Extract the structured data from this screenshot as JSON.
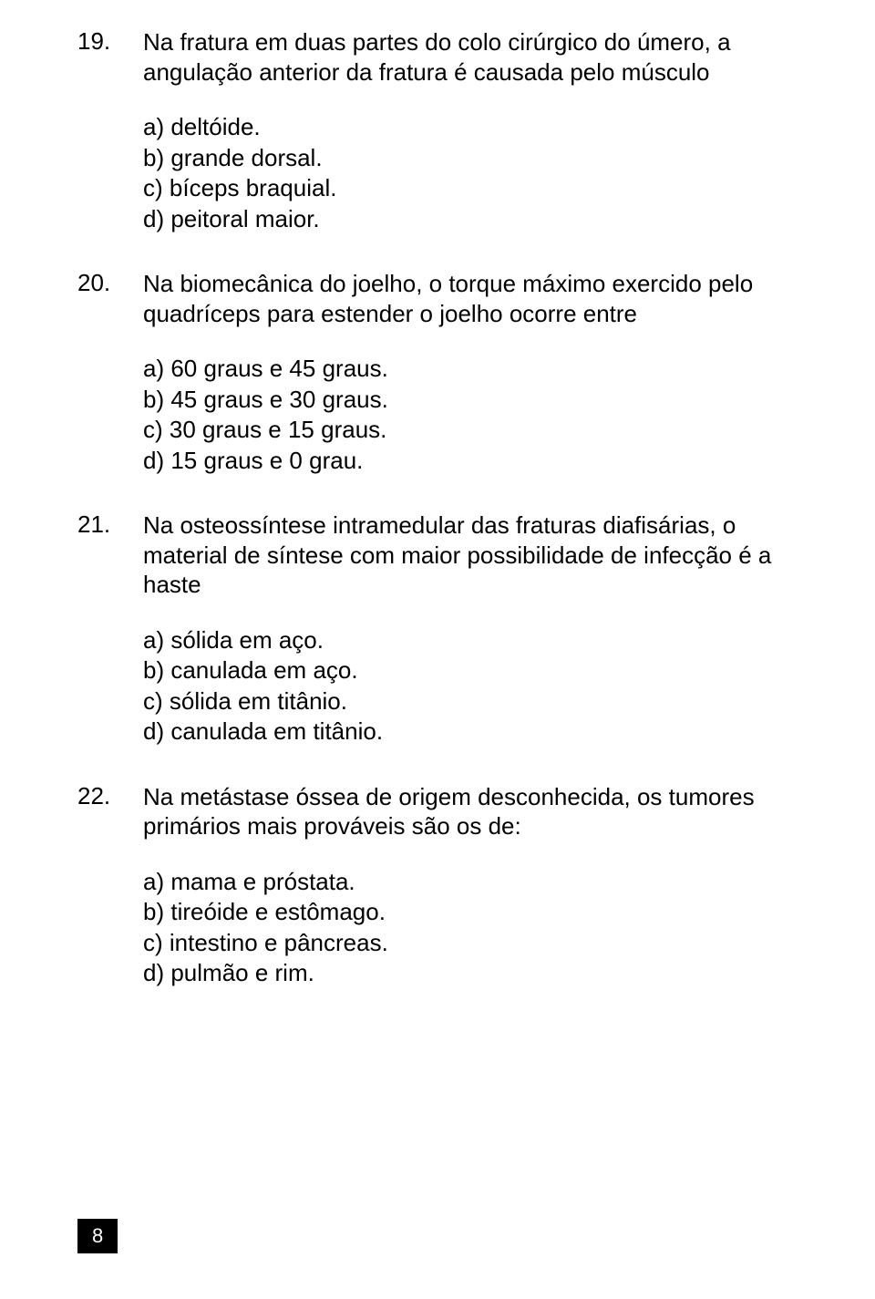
{
  "questions": [
    {
      "number": "19.",
      "text": "Na fratura em duas partes do colo cirúrgico do úmero, a angulação anterior da fratura é causada pelo músculo",
      "options": [
        "a) deltóide.",
        "b) grande dorsal.",
        "c) bíceps braquial.",
        "d) peitoral maior."
      ]
    },
    {
      "number": "20.",
      "text": "Na biomecânica do joelho, o torque máximo exercido pelo quadríceps para estender o joelho ocorre entre",
      "options": [
        "a) 60 graus e 45 graus.",
        "b) 45 graus e 30 graus.",
        "c) 30 graus e 15 graus.",
        "d) 15 graus e 0 grau."
      ]
    },
    {
      "number": "21.",
      "text": "Na osteossíntese intramedular das fraturas diafisárias, o material de síntese com maior possibilidade de infecção é a haste",
      "options": [
        "a) sólida em aço.",
        "b) canulada em aço.",
        "c) sólida em titânio.",
        "d) canulada em titânio."
      ]
    },
    {
      "number": "22.",
      "text": "Na metástase óssea de origem desconhecida, os tumores primários mais prováveis são os de:",
      "options": [
        "a) mama e próstata.",
        "b) tireóide e estômago.",
        "c) intestino e pâncreas.",
        "d) pulmão e rim."
      ]
    }
  ],
  "page_number": "8"
}
